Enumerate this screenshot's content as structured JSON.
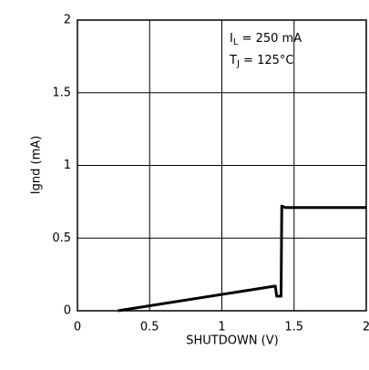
{
  "chart_data": {
    "type": "line",
    "x_label": "SHUTDOWN (V)",
    "y_label": "Ignd (mA)",
    "annotations": [
      {
        "symbol": "I",
        "subscript": "L",
        "text": " = 250 mA"
      },
      {
        "symbol": "T",
        "subscript": "J",
        "text": " = 125°C"
      }
    ],
    "x": [
      0.28,
      1.37,
      1.38,
      1.41,
      1.415,
      1.44,
      2.0
    ],
    "values": [
      0,
      0.17,
      0.1,
      0.1,
      0.72,
      0.71,
      0.71
    ],
    "color": "#000000",
    "xlim": [
      0,
      2
    ],
    "ylim": [
      0,
      2
    ],
    "xticks": [
      0,
      0.5,
      1,
      1.5,
      2
    ],
    "yticks": [
      0,
      0.5,
      1,
      1.5,
      2
    ],
    "grid": true
  }
}
